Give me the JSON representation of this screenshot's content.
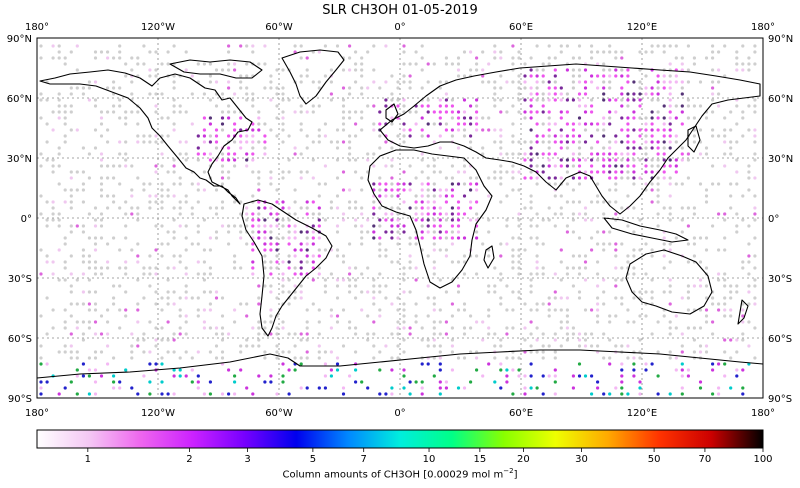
{
  "title": "SLR CH3OH 01-05-2019",
  "lon_top_labels": [
    "180°",
    "120°W",
    "60°W",
    "0°",
    "60°E",
    "120°E",
    "180°"
  ],
  "lon_bottom_labels": [
    "180°",
    "120°W",
    "60°W",
    "0°",
    "60°E",
    "120°E",
    "180°"
  ],
  "lat_labels": [
    "90°N",
    "60°N",
    "30°N",
    "0°",
    "30°S",
    "60°S",
    "90°S"
  ],
  "colorbar": {
    "ticks": [
      "1",
      "2",
      "3",
      "5",
      "7",
      "10",
      "15",
      "20",
      "30",
      "50",
      "70",
      "100"
    ],
    "label_main": "Column amounts of CH3OH [0.00029 mol m",
    "label_sup": "−2",
    "label_end": "]",
    "colors": [
      "#ffffff",
      "#f4c8f4",
      "#ee66ee",
      "#cc22ff",
      "#7700ff",
      "#0000ee",
      "#0088ff",
      "#00eedd",
      "#00ff88",
      "#88ff00",
      "#eeff00",
      "#ffaa00",
      "#ff3300",
      "#cc0000",
      "#000000"
    ]
  },
  "chart_data": {
    "type": "map",
    "projection": "equirectangular",
    "lon_range": [
      -180,
      180
    ],
    "lat_range": [
      -90,
      90
    ],
    "gridlines": true,
    "colorbar_range": [
      0,
      100
    ],
    "colorbar_placement": "bottom"
  }
}
